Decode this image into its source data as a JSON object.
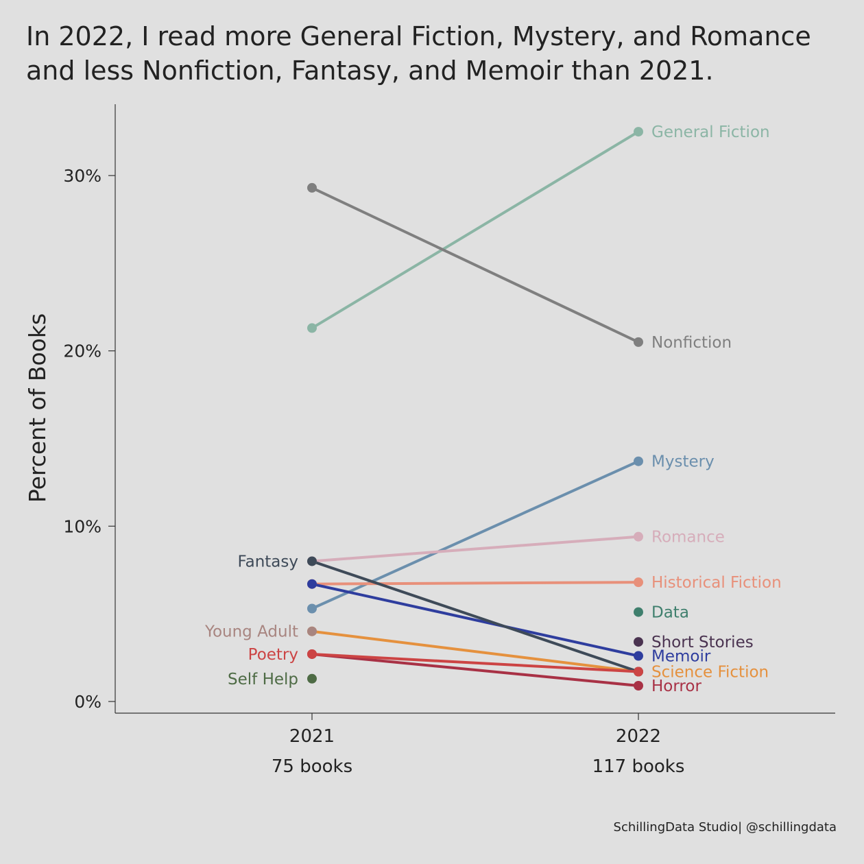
{
  "chart_data": {
    "type": "line",
    "title_lines": [
      "In 2022, I read more General Fiction, Mystery, and Romance",
      "and less Nonfiction, Fantasy, and Memoir than 2021."
    ],
    "ylabel": "Percent of Books",
    "ylim": [
      -0.3,
      34.5
    ],
    "yticks": [
      0,
      10,
      20,
      30
    ],
    "ytick_labels": [
      "0%",
      "10%",
      "20%",
      "30%"
    ],
    "categories": [
      "2021",
      "2022"
    ],
    "category_sublabels": [
      "75 books",
      "117 books"
    ],
    "grid": false,
    "series": [
      {
        "name": "General Fiction",
        "color": "#8bb5a5",
        "values": [
          21.3,
          32.5
        ],
        "label_at": "2022"
      },
      {
        "name": "Nonfiction",
        "color": "#7f7f7f",
        "values": [
          29.3,
          20.5
        ],
        "label_at": "2022"
      },
      {
        "name": "Mystery",
        "color": "#6b8fad",
        "values": [
          5.3,
          13.7
        ],
        "label_at": "2022"
      },
      {
        "name": "Romance",
        "color": "#d6adba",
        "values": [
          8.0,
          9.4
        ],
        "label_at": "2022"
      },
      {
        "name": "Historical Fiction",
        "color": "#e8907a",
        "values": [
          6.7,
          6.8
        ],
        "label_at": "2022"
      },
      {
        "name": "Data",
        "color": "#3f7f6d",
        "values": [
          null,
          5.1
        ],
        "label_at": "2022"
      },
      {
        "name": "Short Stories",
        "color": "#4a3350",
        "values": [
          null,
          3.4
        ],
        "label_at": "2022"
      },
      {
        "name": "Memoir",
        "color": "#2e3d9e",
        "values": [
          6.7,
          2.6
        ],
        "label_at": "2022"
      },
      {
        "name": "Science Fiction",
        "color": "#e5913e",
        "values": [
          4.0,
          1.7
        ],
        "label_at": "2022"
      },
      {
        "name": "Horror",
        "color": "#a83145",
        "values": [
          2.7,
          0.9
        ],
        "label_at": "2022"
      },
      {
        "name": "Fantasy",
        "color": "#3e4a58",
        "values": [
          8.0,
          1.7
        ],
        "label_at": "2021"
      },
      {
        "name": "Young Adult",
        "color": "#a88580",
        "values": [
          4.0,
          null
        ],
        "label_at": "2021"
      },
      {
        "name": "Poetry",
        "color": "#cc4444",
        "values": [
          2.7,
          1.7
        ],
        "label_at": "2021"
      },
      {
        "name": "Self Help",
        "color": "#4e6b45",
        "values": [
          1.3,
          null
        ],
        "label_at": "2021"
      }
    ]
  },
  "caption": "SchillingData Studio| @schillingdata"
}
